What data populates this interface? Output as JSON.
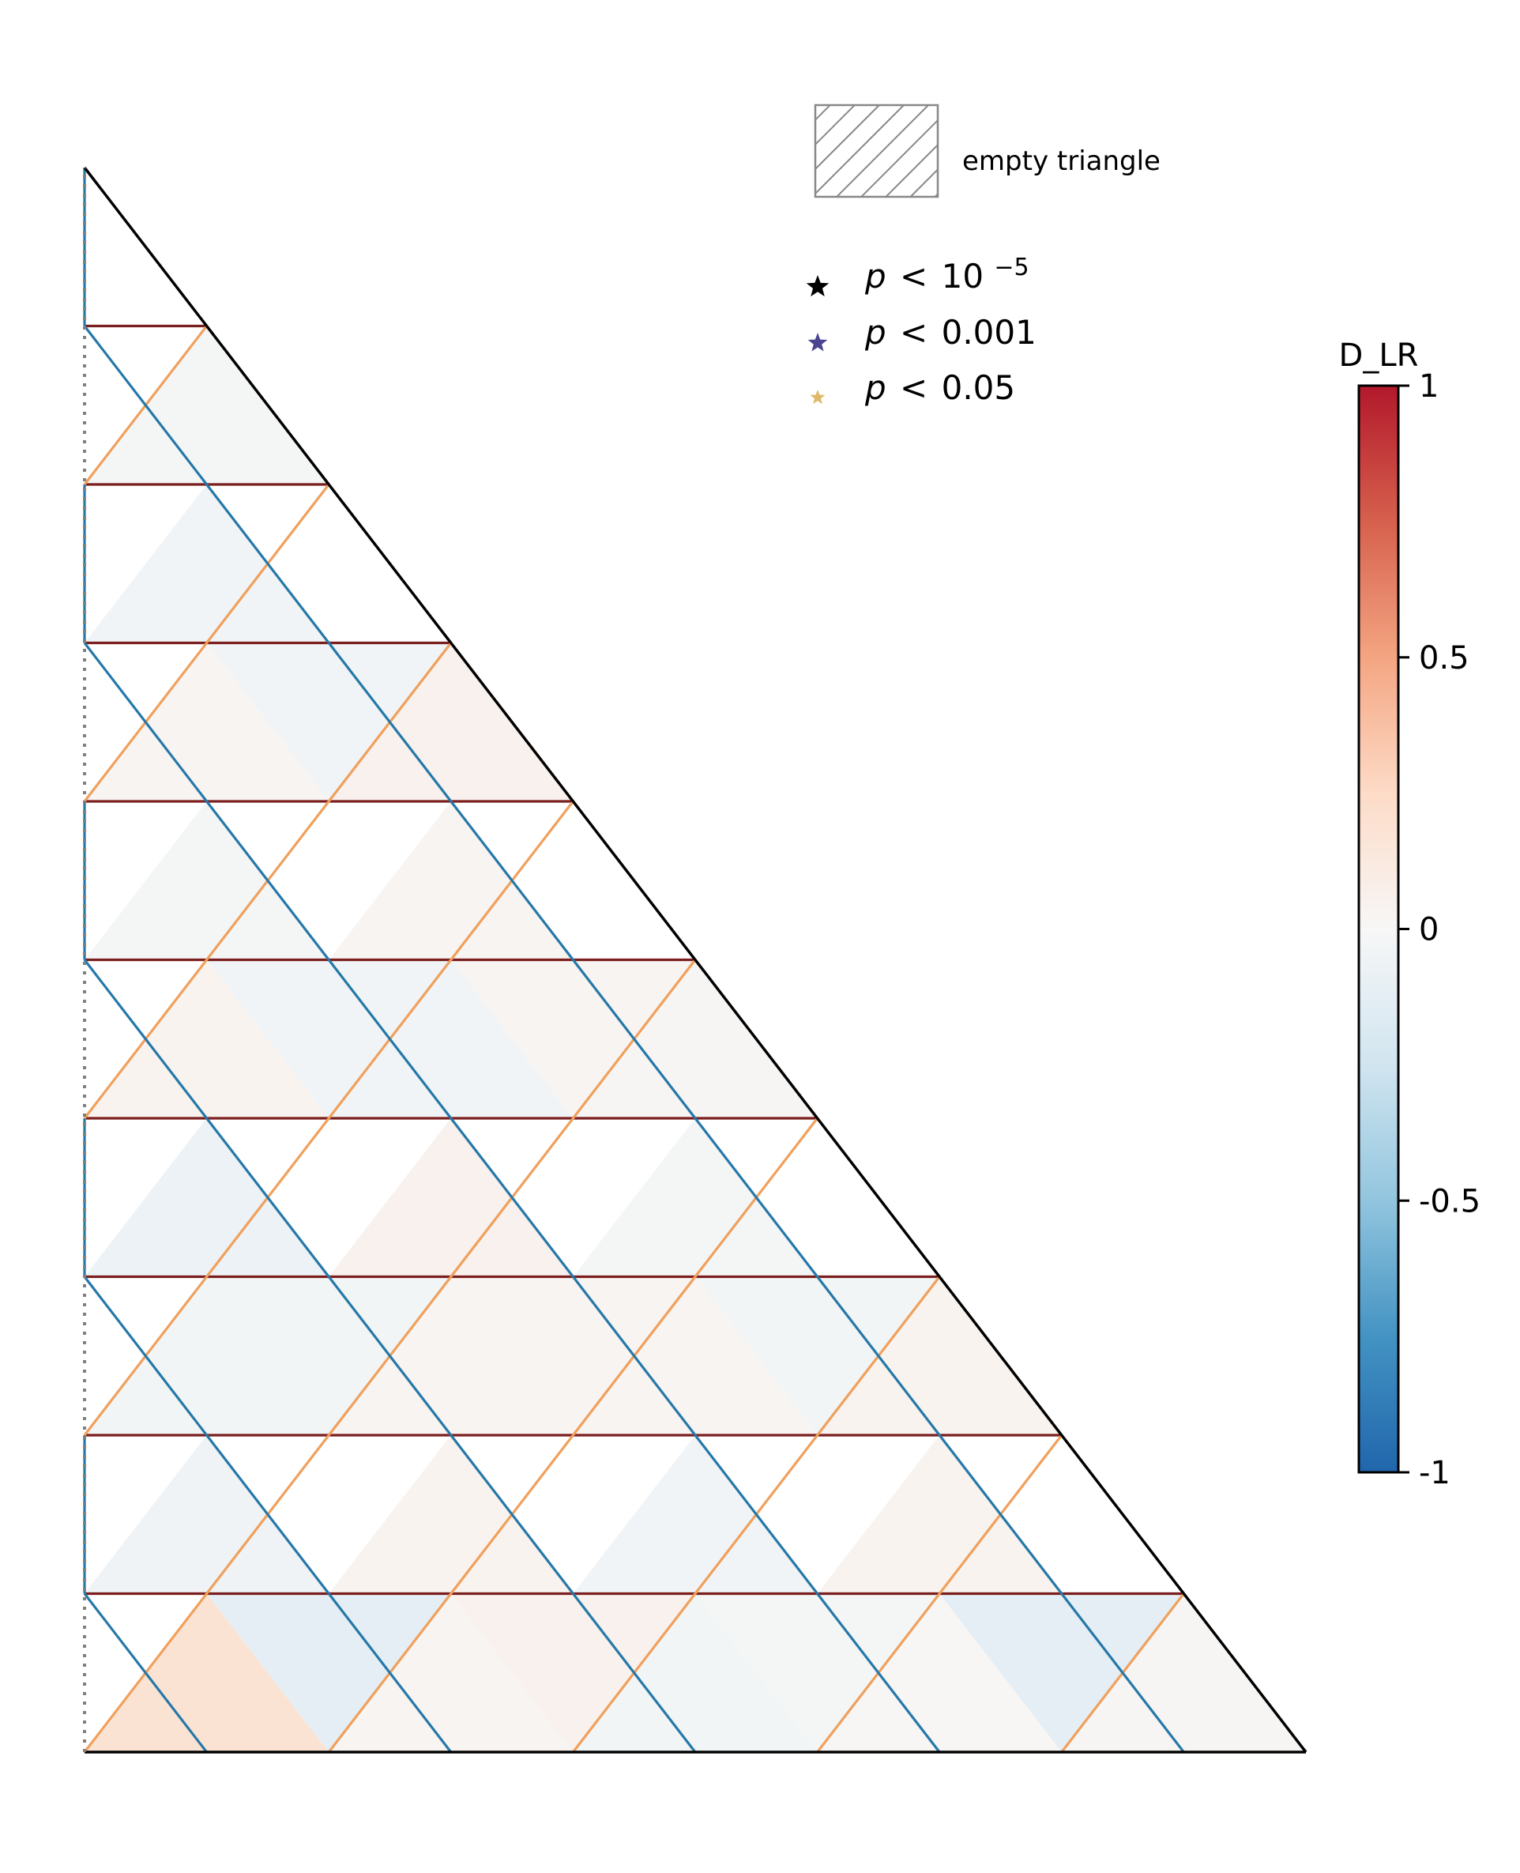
{
  "chart_data": {
    "type": "heatmap",
    "subtype": "ternary-triangle-grid",
    "n_divisions": 10,
    "colorbar": {
      "title": "D_LR",
      "vmin": -1,
      "vmax": 1,
      "ticks": [
        {
          "value": 1,
          "label": "1"
        },
        {
          "value": 0.5,
          "label": "0.5"
        },
        {
          "value": 0,
          "label": "0"
        },
        {
          "value": -0.5,
          "label": "-0.5"
        },
        {
          "value": -1,
          "label": "-1"
        }
      ],
      "colormap": "RdBu_r"
    },
    "legend": {
      "hatch_label": "empty triangle",
      "significance": [
        {
          "symbol": "star",
          "color": "#000000",
          "label_prefix": "p",
          "label_rel": "<",
          "label_base": "10",
          "label_exp": "−5"
        },
        {
          "symbol": "star",
          "color": "#4b4490",
          "label_prefix": "p",
          "label_rel": "<",
          "label_base": "0.001",
          "label_exp": ""
        },
        {
          "symbol": "star",
          "color": "#e0b86a",
          "label_prefix": "p",
          "label_rel": "<",
          "label_base": "0.05",
          "label_exp": ""
        }
      ]
    },
    "edge_colors": {
      "horizontal": "#7b1e1e",
      "rising": "#f0a05c",
      "falling": "#2678a8",
      "outline": "#000000",
      "left_axis_dotted": "#808080"
    },
    "cells_up": [
      [
        0.18,
        0.03,
        -0.03,
        0.01,
        0.02,
        0.06
      ],
      [
        -0.03,
        0.03,
        0.03,
        0.04,
        0.06
      ],
      [
        0.04,
        -0.04,
        0.02,
        -0.02
      ],
      [
        0.03,
        0.05,
        -0.04
      ],
      [
        -0.02,
        0.05
      ],
      [
        0.02
      ]
    ],
    "cells_up_positions": "rows from bottom: row r holds up-triangles between heights r and r+1",
    "cells_down": [
      [
        -0.12,
        0.05,
        -0.02,
        -0.12,
        0.06
      ],
      [
        -0.05,
        0.04,
        -0.04,
        0.04
      ],
      [
        -0.03,
        0.03,
        -0.03
      ],
      [
        -0.07,
        0.05,
        -0.02
      ],
      [
        -0.04,
        0.03
      ],
      [
        -0.02,
        0.03
      ],
      [
        -0.04
      ],
      [
        -0.04
      ],
      [
        -0.05
      ]
    ]
  }
}
